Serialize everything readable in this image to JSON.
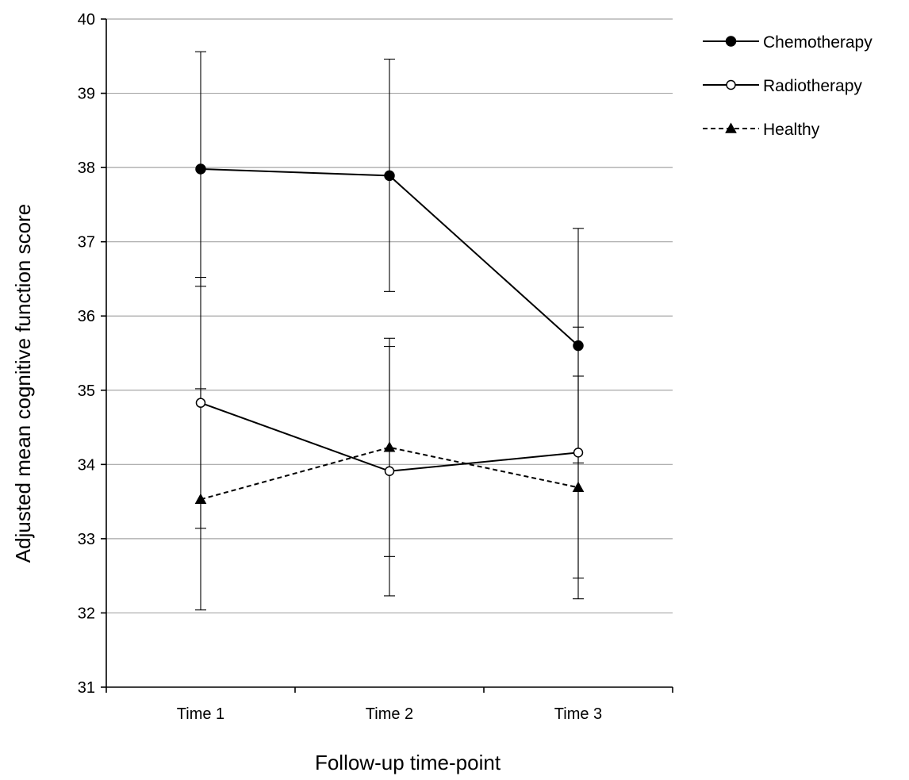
{
  "chart_data": {
    "type": "line",
    "title": "",
    "xlabel": "Follow-up time-point",
    "ylabel": "Adjusted mean cognitive function score",
    "categories": [
      "Time 1",
      "Time 2",
      "Time 3"
    ],
    "ylim": [
      31,
      40
    ],
    "yticks": [
      "31",
      "32",
      "33",
      "34",
      "35",
      "36",
      "37",
      "38",
      "39",
      "40"
    ],
    "grid": "horizontal",
    "legend_position": "top-right",
    "series": [
      {
        "name": "Chemotherapy",
        "marker": "filled-circle",
        "line_style": "solid",
        "values": [
          37.98,
          37.89,
          35.6
        ],
        "error_low": [
          36.4,
          36.33,
          34.02
        ],
        "error_high": [
          39.56,
          39.46,
          37.18
        ]
      },
      {
        "name": "Radiotherapy",
        "marker": "open-circle",
        "line_style": "solid",
        "values": [
          34.83,
          33.91,
          34.16
        ],
        "error_low": [
          33.14,
          32.23,
          32.47
        ],
        "error_high": [
          36.52,
          35.59,
          35.85
        ]
      },
      {
        "name": "Healthy",
        "marker": "filled-triangle",
        "line_style": "dashed",
        "values": [
          33.53,
          34.23,
          33.69
        ],
        "error_low": [
          32.04,
          32.76,
          32.19
        ],
        "error_high": [
          35.02,
          35.7,
          35.19
        ]
      }
    ]
  }
}
